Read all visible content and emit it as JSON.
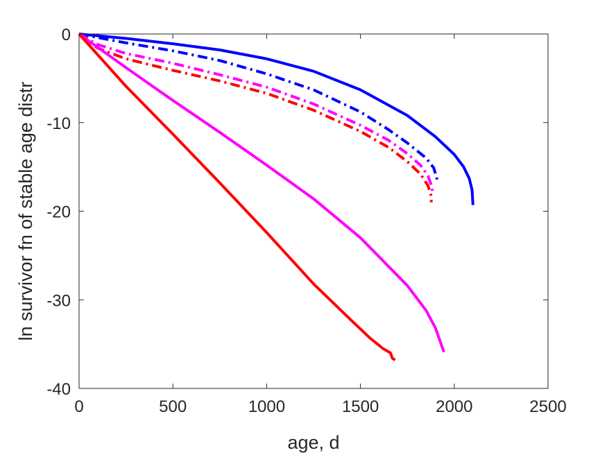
{
  "chart_data": {
    "type": "line",
    "title": "",
    "xlabel": "age, d",
    "ylabel": "ln survivor fn of stable age distr",
    "xlim": [
      0,
      2500
    ],
    "ylim": [
      -40,
      0
    ],
    "xticks": [
      0,
      500,
      1000,
      1500,
      2000,
      2500
    ],
    "yticks": [
      0,
      -10,
      -20,
      -30,
      -40
    ],
    "xtick_labels": [
      "0",
      "500",
      "1000",
      "1500",
      "2000",
      "2500"
    ],
    "ytick_labels": [
      "0",
      "-10",
      "-20",
      "-30",
      "-40"
    ],
    "grid": false,
    "legend": "none",
    "series": [
      {
        "color": "#0000ff",
        "style": "solid",
        "points": [
          [
            0,
            0
          ],
          [
            250,
            -0.5
          ],
          [
            500,
            -1.1
          ],
          [
            750,
            -1.8
          ],
          [
            1000,
            -2.8
          ],
          [
            1250,
            -4.2
          ],
          [
            1500,
            -6.3
          ],
          [
            1750,
            -9.2
          ],
          [
            1900,
            -11.6
          ],
          [
            2000,
            -13.6
          ],
          [
            2050,
            -15.0
          ],
          [
            2080,
            -16.3
          ],
          [
            2095,
            -17.6
          ],
          [
            2100,
            -19.3
          ]
        ]
      },
      {
        "color": "#0000ff",
        "style": "dashdot",
        "points": [
          [
            0,
            0
          ],
          [
            250,
            -1.0
          ],
          [
            500,
            -1.9
          ],
          [
            750,
            -3.0
          ],
          [
            1000,
            -4.5
          ],
          [
            1250,
            -6.3
          ],
          [
            1500,
            -8.8
          ],
          [
            1650,
            -10.8
          ],
          [
            1750,
            -12.3
          ],
          [
            1850,
            -14.0
          ],
          [
            1890,
            -15.1
          ],
          [
            1905,
            -16.1
          ],
          [
            1910,
            -16.6
          ]
        ]
      },
      {
        "color": "#ff00ff",
        "style": "dashdot",
        "points": [
          [
            0,
            0
          ],
          [
            100,
            -1.2
          ],
          [
            250,
            -2.2
          ],
          [
            500,
            -3.3
          ],
          [
            750,
            -4.6
          ],
          [
            1000,
            -6.0
          ],
          [
            1250,
            -7.9
          ],
          [
            1500,
            -10.3
          ],
          [
            1650,
            -12.0
          ],
          [
            1750,
            -13.5
          ],
          [
            1820,
            -14.8
          ],
          [
            1860,
            -16.0
          ],
          [
            1880,
            -17.2
          ],
          [
            1885,
            -17.9
          ]
        ]
      },
      {
        "color": "#ff0000",
        "style": "dashdot",
        "points": [
          [
            0,
            0
          ],
          [
            100,
            -1.6
          ],
          [
            250,
            -2.8
          ],
          [
            500,
            -4.1
          ],
          [
            750,
            -5.3
          ],
          [
            1000,
            -6.7
          ],
          [
            1250,
            -8.6
          ],
          [
            1500,
            -11.0
          ],
          [
            1650,
            -12.8
          ],
          [
            1750,
            -14.4
          ],
          [
            1820,
            -15.8
          ],
          [
            1860,
            -17.1
          ],
          [
            1875,
            -18.1
          ],
          [
            1878,
            -19.0
          ]
        ]
      },
      {
        "color": "#ff00ff",
        "style": "solid",
        "points": [
          [
            0,
            0
          ],
          [
            250,
            -3.8
          ],
          [
            500,
            -7.5
          ],
          [
            750,
            -11.1
          ],
          [
            1000,
            -14.8
          ],
          [
            1250,
            -18.6
          ],
          [
            1500,
            -23.0
          ],
          [
            1750,
            -28.4
          ],
          [
            1850,
            -31.2
          ],
          [
            1900,
            -33.2
          ],
          [
            1920,
            -34.4
          ],
          [
            1935,
            -35.3
          ],
          [
            1945,
            -35.9
          ]
        ]
      },
      {
        "color": "#ff0000",
        "style": "solid",
        "points": [
          [
            0,
            0
          ],
          [
            250,
            -5.9
          ],
          [
            500,
            -11.3
          ],
          [
            750,
            -16.8
          ],
          [
            1000,
            -22.4
          ],
          [
            1250,
            -28.2
          ],
          [
            1450,
            -32.3
          ],
          [
            1550,
            -34.3
          ],
          [
            1620,
            -35.5
          ],
          [
            1660,
            -36.0
          ],
          [
            1670,
            -36.6
          ],
          [
            1685,
            -36.8
          ]
        ]
      }
    ]
  }
}
